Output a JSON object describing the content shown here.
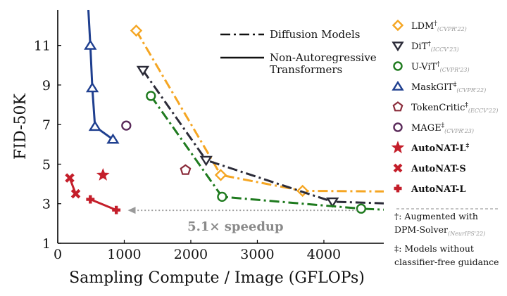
{
  "chart_data": {
    "type": "line",
    "xlabel": "Sampling Compute / Image (GFLOPs)",
    "ylabel": "FID-50K",
    "xlim": [
      0,
      4900
    ],
    "ylim": [
      1,
      12.8
    ],
    "xticks": [
      0,
      1000,
      2000,
      3000,
      4000
    ],
    "yticks": [
      1,
      3,
      5,
      7,
      9,
      11
    ],
    "series": [
      {
        "name": "LDM",
        "sup": "†",
        "sub": "(CVPR'22)",
        "color": "#f5a623",
        "dash": "dashdot",
        "marker": "diamond",
        "bold": false,
        "x": [
          1180,
          2450,
          3680,
          4900
        ],
        "y": [
          11.75,
          4.45,
          3.65,
          3.62
        ]
      },
      {
        "name": "DiT",
        "sup": "†",
        "sub": "(ICCV'23)",
        "color": "#2b2b38",
        "dash": "dashdot",
        "marker": "triangle-down",
        "bold": false,
        "x": [
          1280,
          2230,
          4130,
          4900
        ],
        "y": [
          9.75,
          5.2,
          3.1,
          3.02
        ]
      },
      {
        "name": "U-ViT",
        "sup": "†",
        "sub": "(CVPR'23)",
        "color": "#1e7a1e",
        "dash": "dashdot",
        "marker": "circle",
        "bold": false,
        "x": [
          1400,
          2470,
          4560,
          4900
        ],
        "y": [
          8.45,
          3.35,
          2.75,
          2.7
        ]
      },
      {
        "name": "MaskGIT",
        "sup": "‡",
        "sub": "(CVPR'22)",
        "color": "#1f3f8f",
        "dash": "solid",
        "marker": "triangle-up",
        "bold": false,
        "x": [
          460,
          490,
          520,
          560,
          830
        ],
        "y": [
          12.8,
          11.0,
          8.85,
          6.9,
          6.25
        ]
      },
      {
        "name": "TokenCritic",
        "sup": "‡",
        "sub": "(ECCV'22)",
        "color": "#8a2b3a",
        "dash": "none",
        "marker": "pentagon",
        "bold": false,
        "x": [
          1920
        ],
        "y": [
          4.7
        ]
      },
      {
        "name": "MAGE",
        "sup": "‡",
        "sub": "(CVPR'23)",
        "color": "#5a2a5a",
        "dash": "none",
        "marker": "circle-open",
        "bold": false,
        "x": [
          1030
        ],
        "y": [
          6.95
        ]
      },
      {
        "name": "AutoNAT-L",
        "sup": "‡",
        "sub": "",
        "color": "#c41e2a",
        "dash": "none",
        "marker": "star",
        "bold": true,
        "x": [
          680
        ],
        "y": [
          4.45
        ]
      },
      {
        "name": "AutoNAT-S",
        "sup": "",
        "sub": "",
        "color": "#c41e2a",
        "dash": "solid",
        "marker": "x",
        "bold": true,
        "x": [
          180,
          270
        ],
        "y": [
          4.3,
          3.5
        ]
      },
      {
        "name": "AutoNAT-L",
        "sup": "",
        "sub": "",
        "color": "#c41e2a",
        "dash": "solid",
        "marker": "plus",
        "bold": true,
        "x": [
          490,
          880
        ],
        "y": [
          3.22,
          2.68
        ]
      }
    ],
    "line_style_legend": [
      {
        "label": "Diffusion Models",
        "style": "dashdot"
      },
      {
        "label": "Non-Autoregressive\nTransformers",
        "style": "solid"
      }
    ],
    "annotation": {
      "text": "5.1× speedup",
      "from_x": 4500,
      "to_x": 1000,
      "y": 2.7
    },
    "notes": {
      "dagger": "†: Augmented with",
      "dagger2": "DPM-Solver",
      "dagger2_sub": "(NeurIPS'22)",
      "ddagger": "‡: Models without",
      "ddagger2": "classifier-free guidance"
    }
  }
}
